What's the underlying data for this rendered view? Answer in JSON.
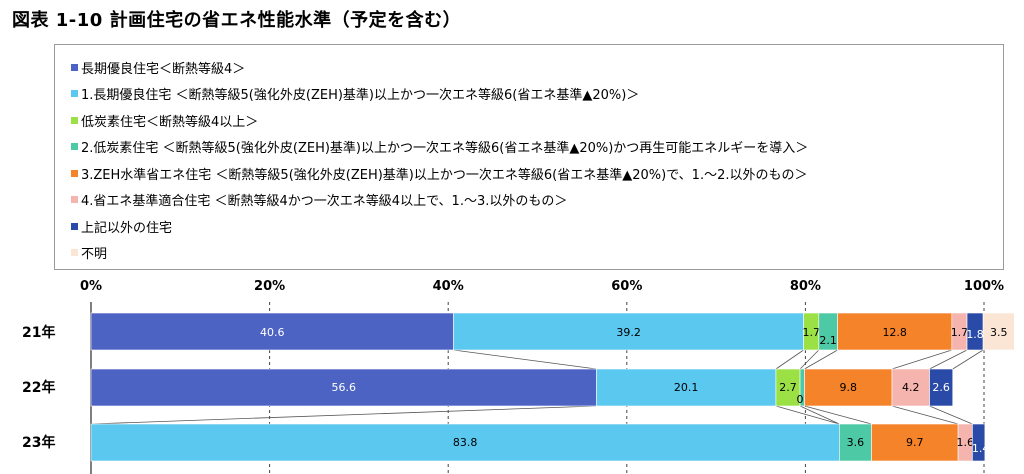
{
  "page": {
    "title": "図表 1-10 計画住宅の省エネ性能水準（予定を含む）"
  },
  "chart_data": {
    "type": "bar",
    "orientation": "horizontal",
    "stacked": true,
    "percent": true,
    "title": "図表 1-10 計画住宅の省エネ性能水準（予定を含む）",
    "categories": [
      "21年",
      "22年",
      "23年"
    ],
    "xlim": [
      0,
      100
    ],
    "x_ticks": [
      "0%",
      "20%",
      "40%",
      "60%",
      "80%",
      "100%"
    ],
    "grid": "vertical dashed",
    "legend_position": "top",
    "series_connector_lines": true,
    "series": [
      {
        "name": "長期優良住宅＜断熱等級4＞",
        "color": "#4c63c3",
        "values": [
          40.6,
          56.6,
          0
        ]
      },
      {
        "name": "1.長期優良住宅 ＜断熱等級5(強化外皮(ZEH)基準)以上かつ一次エネ等級6(省エネ基準▲20%)＞",
        "color": "#5bc8f0",
        "values": [
          39.2,
          20.1,
          83.8
        ]
      },
      {
        "name": "低炭素住宅＜断熱等級4以上＞",
        "color": "#9be045",
        "values": [
          1.7,
          2.7,
          0
        ]
      },
      {
        "name": "2.低炭素住宅 ＜断熱等級5(強化外皮(ZEH)基準)以上かつ一次エネ等級6(省エネ基準▲20%)かつ再生可能エネルギーを導入＞",
        "color": "#4ec9a6",
        "values": [
          2.1,
          0.5,
          3.6
        ]
      },
      {
        "name": "3.ZEH水準省エネ住宅 ＜断熱等級5(強化外皮(ZEH)基準)以上かつ一次エネ等級6(省エネ基準▲20%)で、1.～2.以外のもの＞",
        "color": "#f5832a",
        "values": [
          12.8,
          9.8,
          9.7
        ]
      },
      {
        "name": "4.省エネ基準適合住宅 ＜断熱等級4かつ一次エネ等級4以上で、1.～3.以外のもの＞",
        "color": "#f6b4ae",
        "values": [
          1.7,
          4.2,
          1.6
        ]
      },
      {
        "name": "上記以外の住宅",
        "color": "#2a4aa8",
        "values": [
          1.8,
          2.6,
          1.4
        ]
      },
      {
        "name": "不明",
        "color": "#fbe6d6",
        "values": [
          3.5,
          0,
          0
        ]
      }
    ],
    "data_labels": [
      [
        "40.6",
        "39.2",
        "1.7",
        "2.1",
        "12.8",
        "1.7",
        "1.8",
        "3.5"
      ],
      [
        "56.6",
        "20.1",
        "2.7",
        "0.5",
        "9.8",
        "4.2",
        "2.6",
        ""
      ],
      [
        "",
        "83.8",
        "",
        "3.6",
        "9.7",
        "1.6",
        "1.4",
        ""
      ]
    ]
  }
}
